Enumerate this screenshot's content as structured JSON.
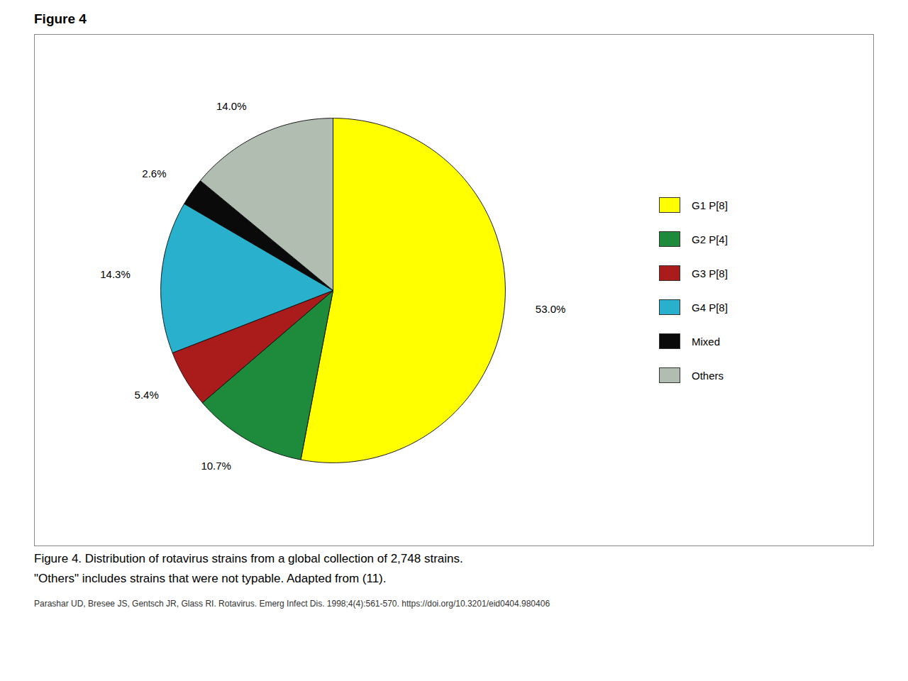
{
  "chart_data": {
    "type": "pie",
    "title": "Figure 4",
    "categories": [
      "G1 P[8]",
      "G2 P[4]",
      "G3 P[8]",
      "G4 P[8]",
      "Mixed",
      "Others"
    ],
    "values": [
      53.0,
      10.7,
      5.4,
      14.3,
      2.6,
      14.0
    ],
    "value_labels": [
      "53.0%",
      "10.7%",
      "5.4%",
      "14.3%",
      "2.6%",
      "14.0%"
    ],
    "colors": [
      "#FFFF00",
      "#1E8B3C",
      "#AA1C1C",
      "#29B0CC",
      "#0A0A0A",
      "#B0BDB0"
    ],
    "data_labels": true,
    "legend": "right",
    "annotations": [
      "Figure 4. Distribution of rotavirus strains from a global collection of 2,748 strains.",
      "\"Others\" includes strains that were not typable. Adapted from (11).",
      "Parashar UD, Bresee JS, Gentsch JR, Glass RI. Rotavirus. Emerg Infect Dis. 1998;4(4):561-570. https://doi.org/10.3201/eid0404.980406"
    ]
  }
}
